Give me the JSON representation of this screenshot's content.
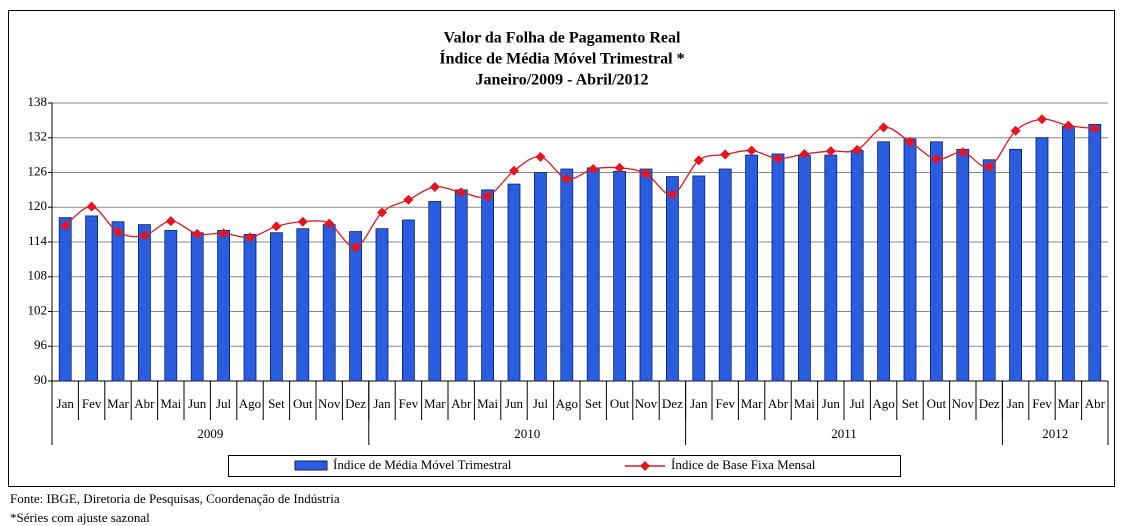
{
  "chart_data": {
    "type": "bar-line",
    "title": [
      "Valor da Folha de Pagamento Real",
      "Índice de Média Móvel Trimestral *",
      "Janeiro/2009 - Abril/2012"
    ],
    "groups": [
      {
        "label": "2009",
        "categories": [
          "Jan",
          "Fev",
          "Mar",
          "Abr",
          "Mai",
          "Jun",
          "Jul",
          "Ago",
          "Set",
          "Out",
          "Nov",
          "Dez"
        ]
      },
      {
        "label": "2010",
        "categories": [
          "Jan",
          "Fev",
          "Mar",
          "Abr",
          "Mai",
          "Jun",
          "Jul",
          "Ago",
          "Set",
          "Out",
          "Nov",
          "Dez"
        ]
      },
      {
        "label": "2011",
        "categories": [
          "Jan",
          "Fev",
          "Mar",
          "Abr",
          "Mai",
          "Jun",
          "Jul",
          "Ago",
          "Set",
          "Out",
          "Nov",
          "Dez"
        ]
      },
      {
        "label": "2012",
        "categories": [
          "Jan",
          "Fev",
          "Mar",
          "Abr"
        ]
      }
    ],
    "series": [
      {
        "name": "Índice de Média Móvel Trimestral",
        "type": "bar",
        "color": "#2a5de0",
        "values": [
          118.2,
          118.5,
          117.5,
          117,
          116,
          115.6,
          116,
          115.3,
          115.6,
          116.3,
          117,
          115.8,
          116.3,
          117.8,
          121,
          123,
          123,
          124,
          126,
          126.6,
          126.8,
          126.2,
          126.6,
          125.3,
          125.4,
          126.6,
          129,
          129.2,
          129,
          129,
          129.8,
          131.3,
          131.8,
          131.3,
          130,
          128.2,
          130,
          132,
          134,
          134.3
        ]
      },
      {
        "name": "Índice de Base Fixa Mensal",
        "type": "line",
        "color": "#e8141c",
        "values": [
          116.8,
          120.1,
          115.7,
          115.1,
          117.6,
          115.4,
          115.5,
          114.8,
          116.7,
          117.5,
          117.2,
          113.1,
          119.1,
          121.3,
          123.5,
          122.6,
          121.9,
          126.3,
          128.7,
          124.9,
          126.6,
          126.8,
          125.8,
          122.2,
          128.1,
          129.1,
          129.8,
          128.4,
          129.2,
          129.7,
          129.9,
          133.8,
          131.3,
          128.3,
          129.5,
          127,
          133.2,
          135.2,
          134.1,
          133.6
        ]
      }
    ],
    "ylim": [
      90,
      138
    ],
    "yticks": [
      90,
      96,
      102,
      108,
      114,
      120,
      126,
      132,
      138
    ],
    "grid": true,
    "notes": [
      "Fonte: IBGE, Diretoria de Pesquisas, Coordenação de Indústria",
      "*Séries com ajuste sazonal"
    ]
  }
}
